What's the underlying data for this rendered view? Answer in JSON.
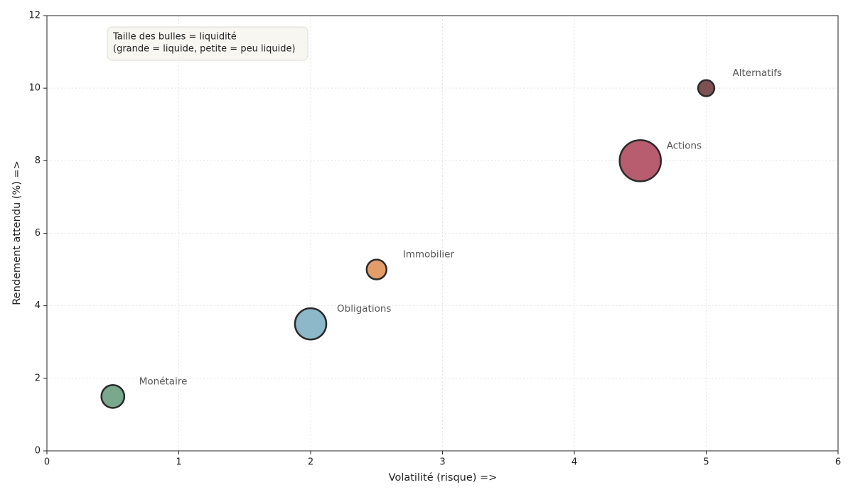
{
  "chart_data": {
    "type": "bubble",
    "xlabel": "Volatilité (risque) =>",
    "ylabel": "Rendement attendu (%) =>",
    "annotation": [
      "Taille des bulles = liquidité",
      "(grande = liquide, petite = peu liquide)"
    ],
    "labels": [
      "Monétaire",
      "Obligations",
      "Immobilier",
      "Actions",
      "Alternatifs"
    ],
    "x": [
      0.5,
      2,
      2.5,
      4.5,
      5
    ],
    "y": [
      1.5,
      3.5,
      5,
      8,
      10
    ],
    "sizes": [
      800,
      1500,
      600,
      2600,
      400
    ],
    "colors": [
      "#6a9e7f",
      "#7fb0c4",
      "#e0925a",
      "#b04a60",
      "#6e3f40"
    ],
    "edgecolor": "#2b2b2b",
    "xlim": [
      0,
      6
    ],
    "ylim": [
      0,
      12
    ],
    "xticks": [
      0,
      1,
      2,
      3,
      4,
      5,
      6
    ],
    "yticks": [
      0,
      2,
      4,
      6,
      8,
      10,
      12
    ],
    "grid": true
  }
}
